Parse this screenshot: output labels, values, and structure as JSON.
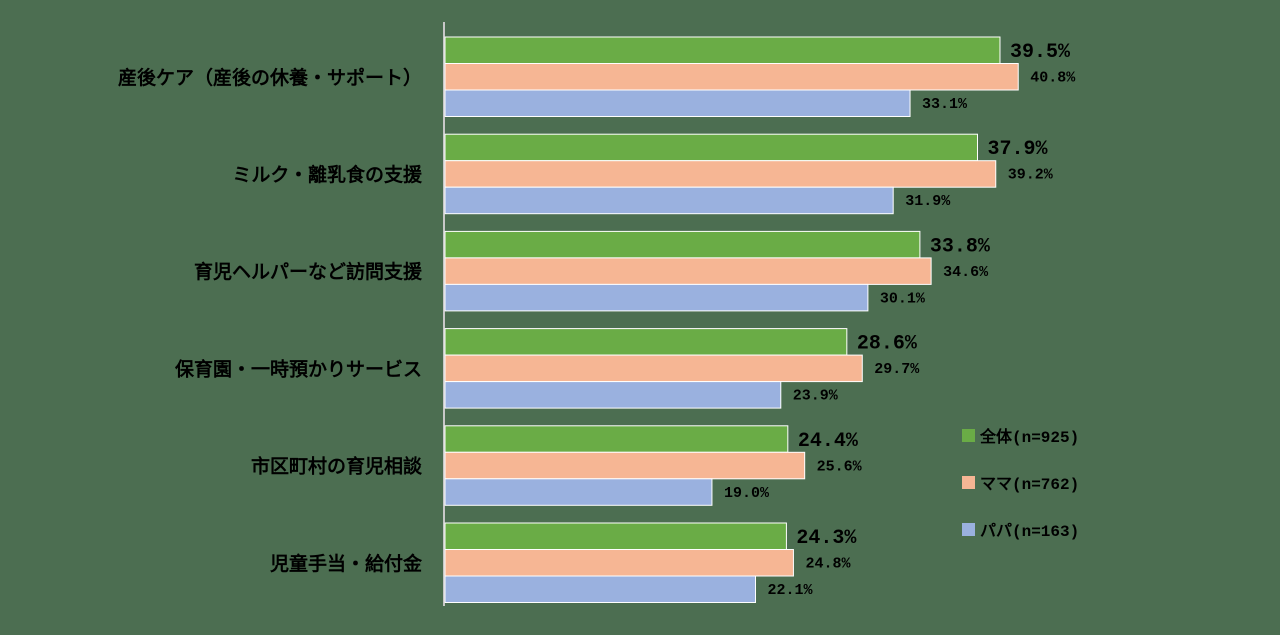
{
  "chart_data": {
    "type": "bar",
    "orientation": "horizontal",
    "categories": [
      "産後ケア（産後の休養・サポート）",
      "ミルク・離乳食の支援",
      "育児ヘルパーなど訪問支援",
      "保育園・一時預かりサービス",
      "市区町村の育児相談",
      "児童手当・給付金"
    ],
    "series": [
      {
        "name": "全体(n=925)",
        "color": "#6aac46",
        "values": [
          39.5,
          37.9,
          33.8,
          28.6,
          24.4,
          24.3
        ],
        "labels": [
          "39.5%",
          "37.9%",
          "33.8%",
          "28.6%",
          "24.4%",
          "24.3%"
        ]
      },
      {
        "name": "ママ(n=762)",
        "color": "#f6b694",
        "values": [
          40.8,
          39.2,
          34.6,
          29.7,
          25.6,
          24.8
        ],
        "labels": [
          "40.8%",
          "39.2%",
          "34.6%",
          "29.7%",
          "25.6%",
          "24.8%"
        ]
      },
      {
        "name": "パパ(n=163)",
        "color": "#9ab1df",
        "values": [
          33.1,
          31.9,
          30.1,
          23.9,
          19.0,
          22.1
        ],
        "labels": [
          "33.1%",
          "31.9%",
          "30.1%",
          "23.9%",
          "19.0%",
          "22.1%"
        ]
      }
    ],
    "xlim": [
      0,
      45
    ],
    "grid": false,
    "legend_position": "right",
    "title": "",
    "xlabel": "",
    "ylabel": ""
  }
}
